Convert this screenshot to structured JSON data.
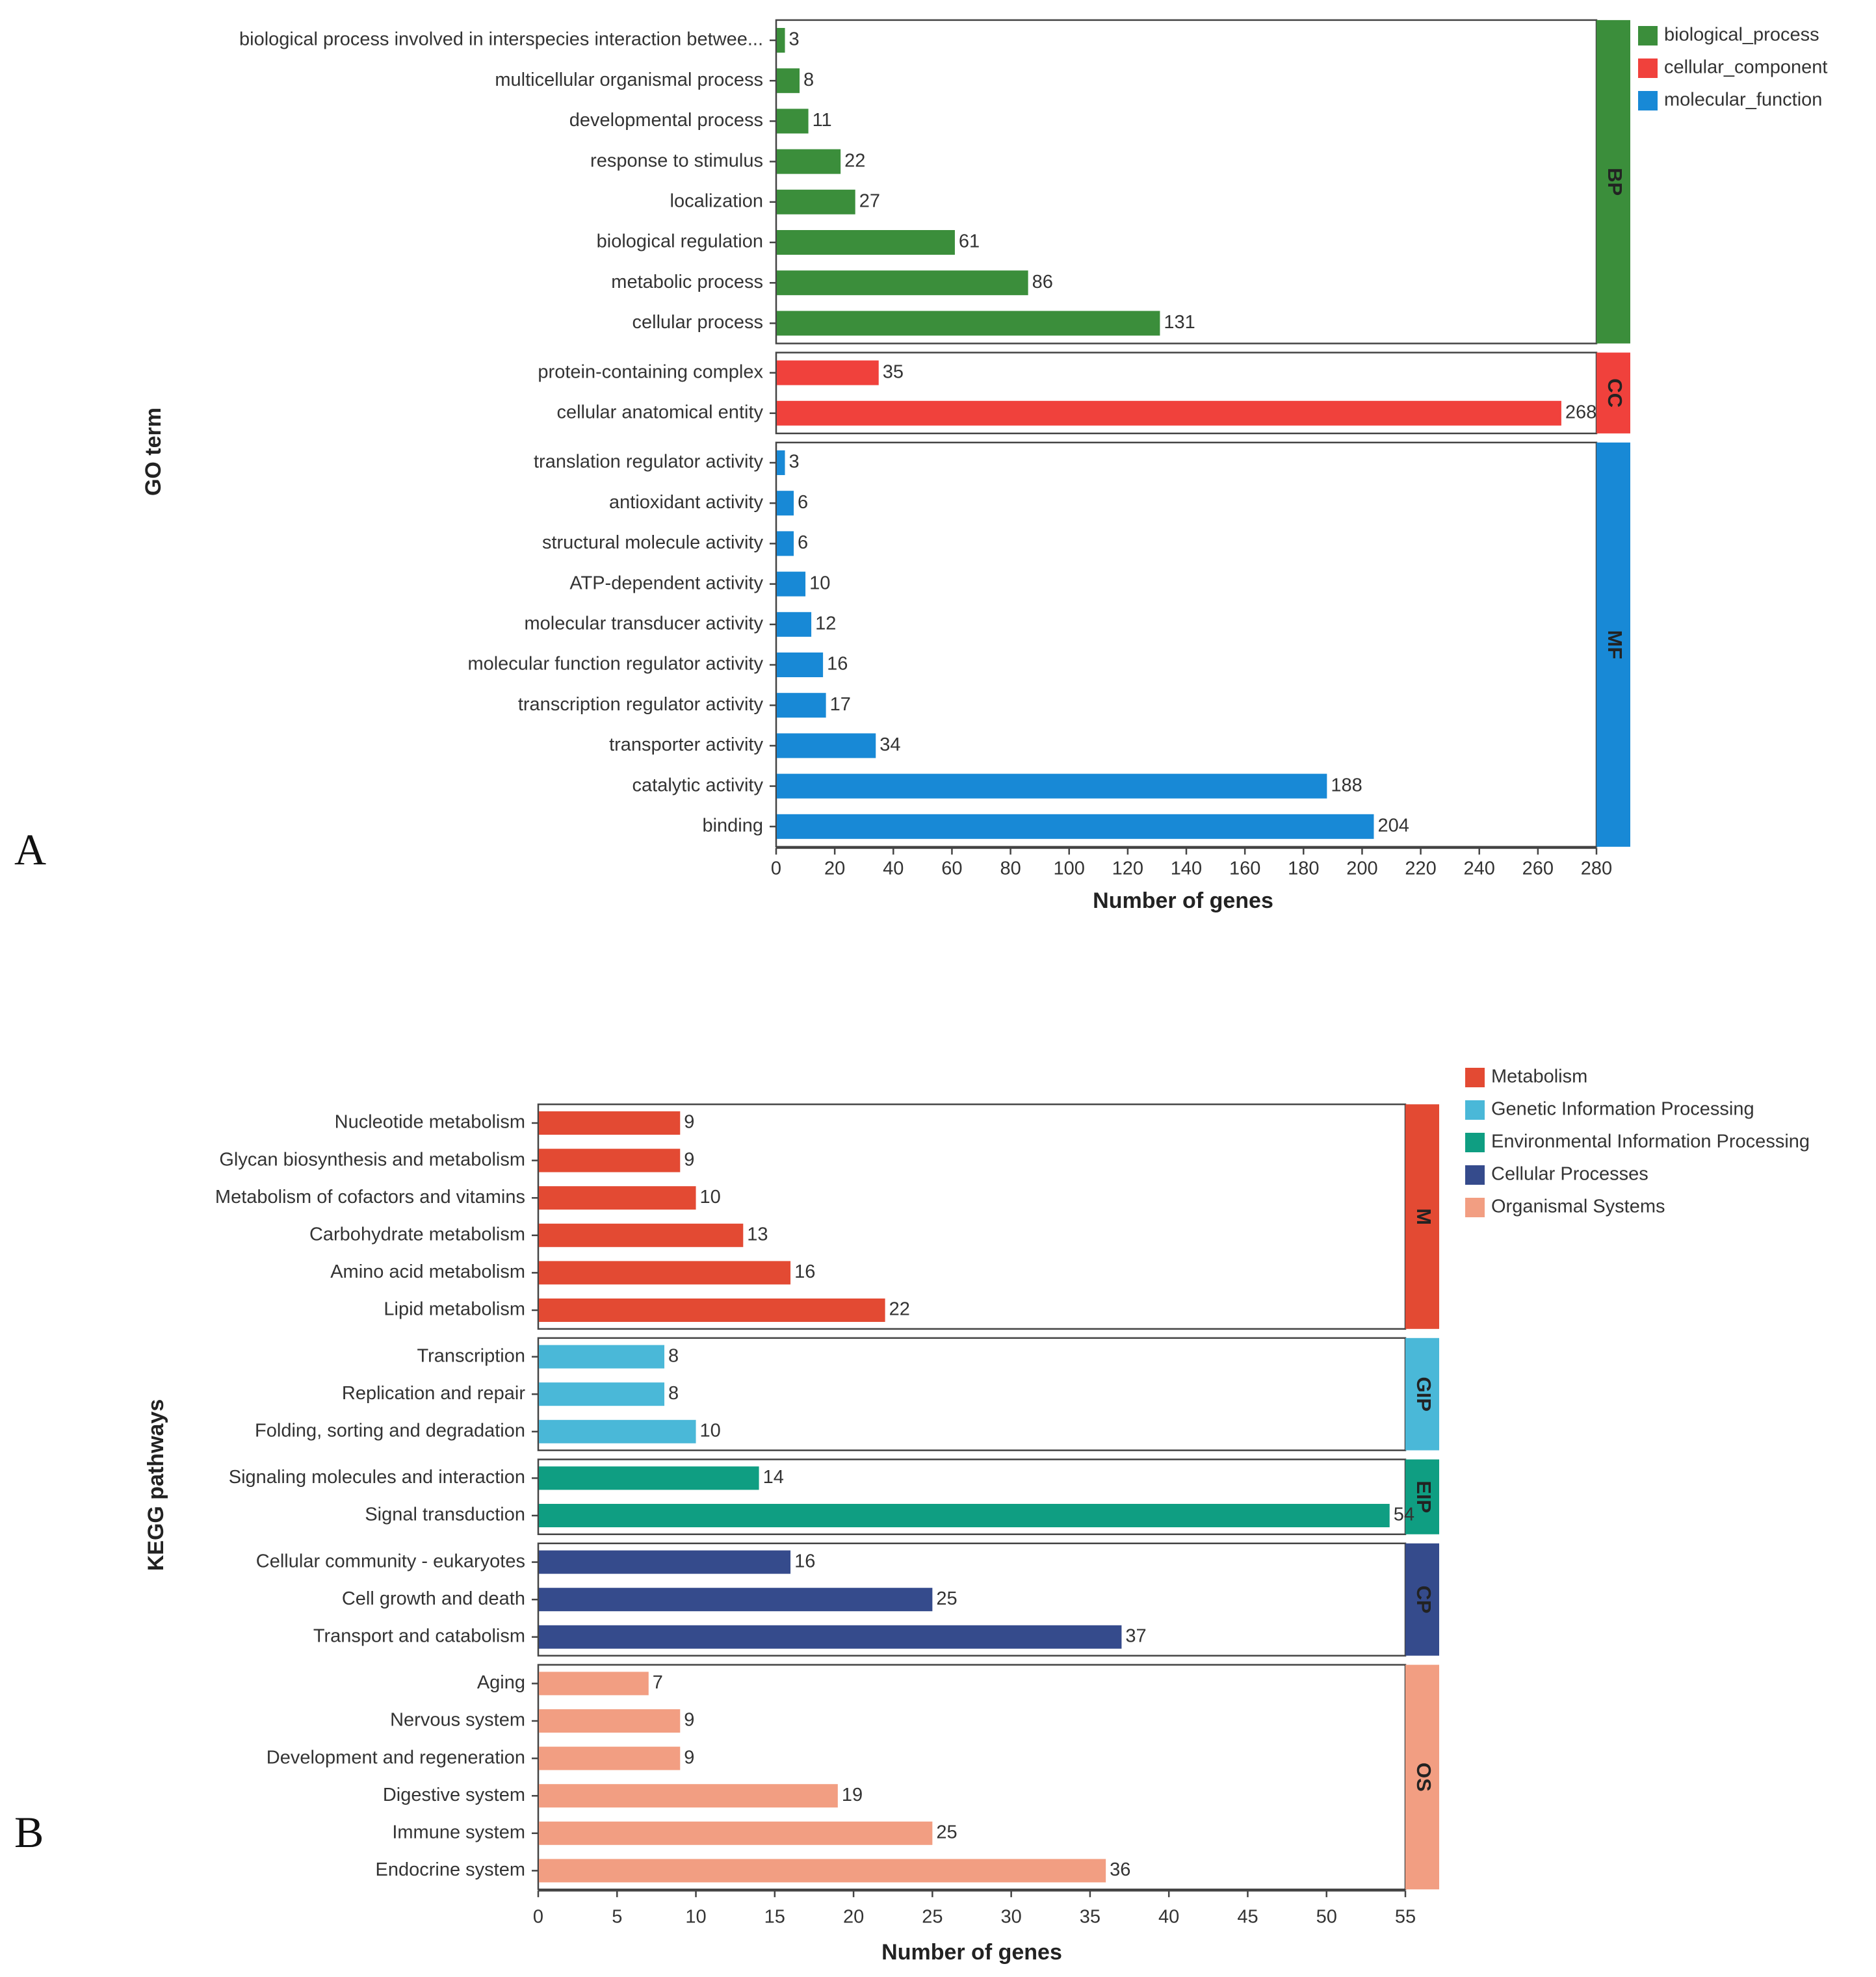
{
  "panels": [
    {
      "id": "A",
      "label": "A"
    },
    {
      "id": "B",
      "label": "B"
    }
  ],
  "chart_data": [
    {
      "id": "go",
      "type": "bar",
      "orientation": "horizontal",
      "title": "",
      "xlabel": "Number of genes",
      "ylabel": "GO term",
      "xlim": [
        0,
        280
      ],
      "xticks": [
        0,
        20,
        40,
        60,
        80,
        100,
        120,
        140,
        160,
        180,
        200,
        220,
        240,
        260,
        280
      ],
      "legend_position": "top-right",
      "groups": [
        {
          "name": "biological_process",
          "short": "BP",
          "color": "#3b8e3b",
          "categories": [
            "biological process involved in interspecies interaction betwee...",
            "multicellular organismal process",
            "developmental process",
            "response to stimulus",
            "localization",
            "biological regulation",
            "metabolic process",
            "cellular process"
          ],
          "values": [
            3,
            8,
            11,
            22,
            27,
            61,
            86,
            131
          ]
        },
        {
          "name": "cellular_component",
          "short": "CC",
          "color": "#f0413c",
          "categories": [
            "protein-containing complex",
            "cellular anatomical entity"
          ],
          "values": [
            35,
            268
          ]
        },
        {
          "name": "molecular_function",
          "short": "MF",
          "color": "#1889d6",
          "categories": [
            "translation regulator activity",
            "antioxidant activity",
            "structural molecule activity",
            "ATP-dependent activity",
            "molecular transducer activity",
            "molecular function regulator activity",
            "transcription regulator activity",
            "transporter activity",
            "catalytic activity",
            "binding"
          ],
          "values": [
            3,
            6,
            6,
            10,
            12,
            16,
            17,
            34,
            188,
            204
          ]
        }
      ]
    },
    {
      "id": "kegg",
      "type": "bar",
      "orientation": "horizontal",
      "title": "",
      "xlabel": "Number of genes",
      "ylabel": "KEGG pathways",
      "xlim": [
        0,
        55
      ],
      "xticks": [
        0,
        5,
        10,
        15,
        20,
        25,
        30,
        35,
        40,
        45,
        50,
        55
      ],
      "legend_position": "top-right",
      "groups": [
        {
          "name": "Metabolism",
          "short": "M",
          "color": "#e34a33",
          "categories": [
            "Nucleotide metabolism",
            "Glycan biosynthesis and metabolism",
            "Metabolism of cofactors and vitamins",
            "Carbohydrate metabolism",
            "Amino acid metabolism",
            "Lipid metabolism"
          ],
          "values": [
            9,
            9,
            10,
            13,
            16,
            22
          ]
        },
        {
          "name": "Genetic Information Processing",
          "short": "GIP",
          "color": "#4ab8d8",
          "categories": [
            "Transcription",
            "Replication and repair",
            "Folding, sorting and degradation"
          ],
          "values": [
            8,
            8,
            10
          ]
        },
        {
          "name": "Environmental Information Processing",
          "short": "EIP",
          "color": "#0f9e82",
          "categories": [
            "Signaling molecules and interaction",
            "Signal transduction"
          ],
          "values": [
            14,
            54
          ]
        },
        {
          "name": "Cellular Processes",
          "short": "CP",
          "color": "#354b8c",
          "categories": [
            "Cellular community - eukaryotes",
            "Cell growth and death",
            "Transport and catabolism"
          ],
          "values": [
            16,
            25,
            37
          ]
        },
        {
          "name": "Organismal Systems",
          "short": "OS",
          "color": "#f29e82",
          "categories": [
            "Aging",
            "Nervous system",
            "Development and regeneration",
            "Digestive system",
            "Immune system",
            "Endocrine system"
          ],
          "values": [
            7,
            9,
            9,
            19,
            25,
            36
          ]
        }
      ]
    }
  ]
}
